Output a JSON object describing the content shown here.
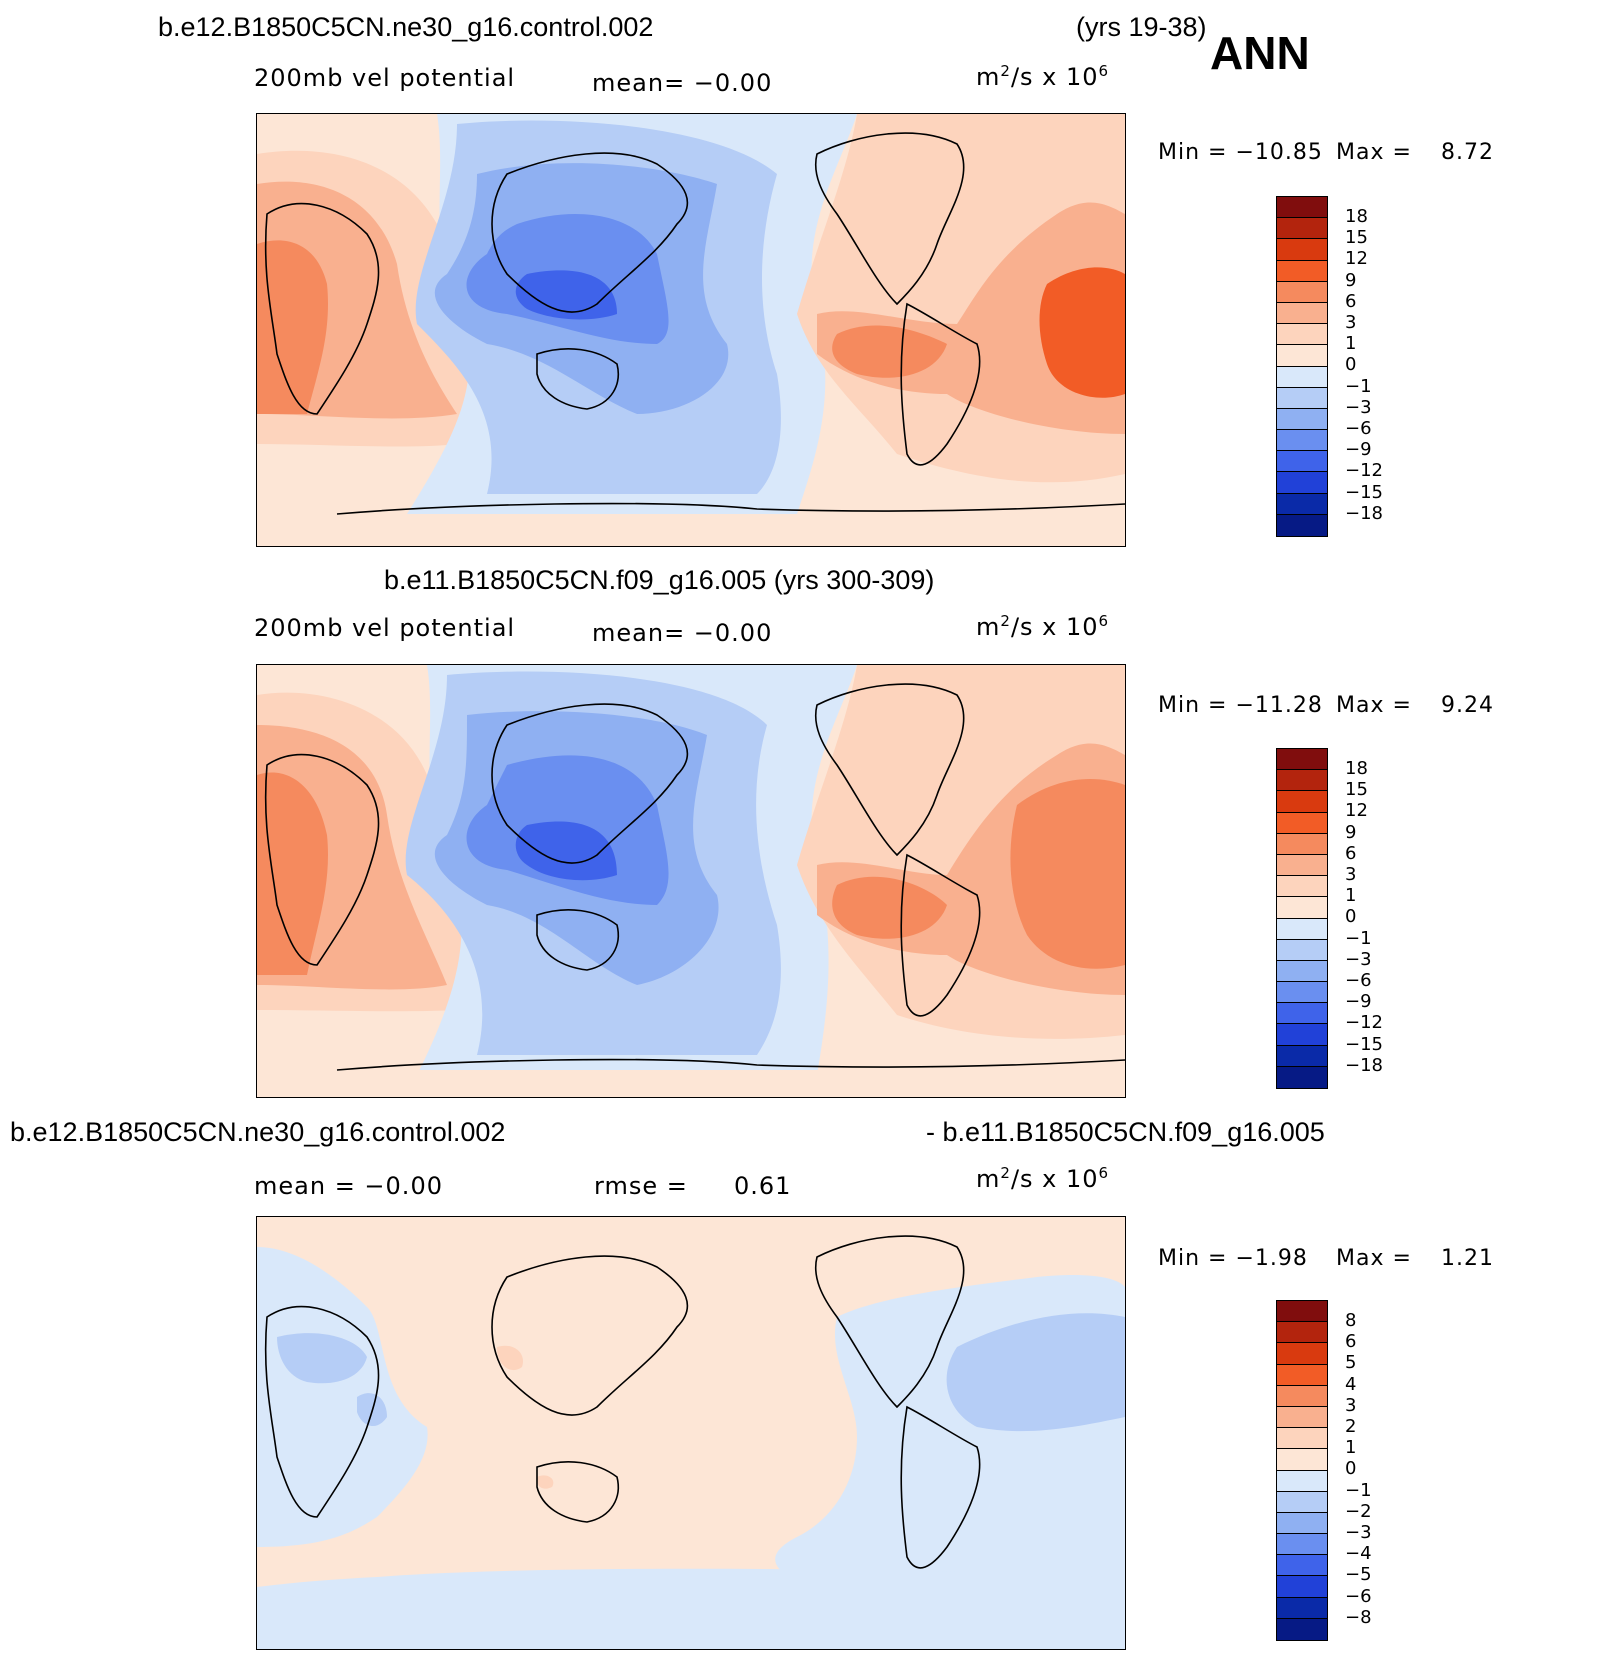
{
  "title_season": "ANN",
  "panels": [
    {
      "title_left": "b.e12.B1850C5CN.ne30_g16.control.002",
      "title_right": "(yrs 19-38)",
      "variable": "200mb vel potential",
      "mean_text": "mean=  −0.00",
      "units_base": "m",
      "units_mid": "/s x 10",
      "units_sup1": "2",
      "units_sup2": "6",
      "min_label": "Min = −10.85",
      "max_label": "Max =",
      "max_value": "8.72",
      "colorbar_labels": [
        "18",
        "15",
        "12",
        "9",
        "6",
        "3",
        "1",
        "0",
        "−1",
        "−3",
        "−6",
        "−9",
        "−12",
        "−15",
        "−18"
      ]
    },
    {
      "title_center": "b.e11.B1850C5CN.f09_g16.005 (yrs 300-309)",
      "variable": "200mb vel potential",
      "mean_text": "mean=  −0.00",
      "units_base": "m",
      "units_mid": "/s x 10",
      "units_sup1": "2",
      "units_sup2": "6",
      "min_label": "Min = −11.28",
      "max_label": "Max =",
      "max_value": "9.24",
      "colorbar_labels": [
        "18",
        "15",
        "12",
        "9",
        "6",
        "3",
        "1",
        "0",
        "−1",
        "−3",
        "−6",
        "−9",
        "−12",
        "−15",
        "−18"
      ]
    },
    {
      "title_left": "b.e12.B1850C5CN.ne30_g16.control.002",
      "title_right": "- b.e11.B1850C5CN.f09_g16.005",
      "mean_text": "mean =  −0.00",
      "rmse_label": "rmse =",
      "rmse_value": "0.61",
      "units_base": "m",
      "units_mid": "/s x 10",
      "units_sup1": "2",
      "units_sup2": "6",
      "min_label": "Min =  −1.98",
      "max_label": "Max =",
      "max_value": "1.21",
      "colorbar_labels": [
        "8",
        "6",
        "5",
        "4",
        "3",
        "2",
        "1",
        "0",
        "−1",
        "−2",
        "−3",
        "−4",
        "−5",
        "−6",
        "−8"
      ]
    }
  ],
  "colors": {
    "scale": [
      "#800d0d",
      "#b3240d",
      "#d93a0f",
      "#f25c26",
      "#f58a5e",
      "#f9b08f",
      "#fdd4bd",
      "#fde6d6",
      "#d9e8fa",
      "#b5cdf6",
      "#8fb0f2",
      "#6a8ff0",
      "#3f63ea",
      "#2141d8",
      "#0a2aa8",
      "#061a85"
    ]
  }
}
